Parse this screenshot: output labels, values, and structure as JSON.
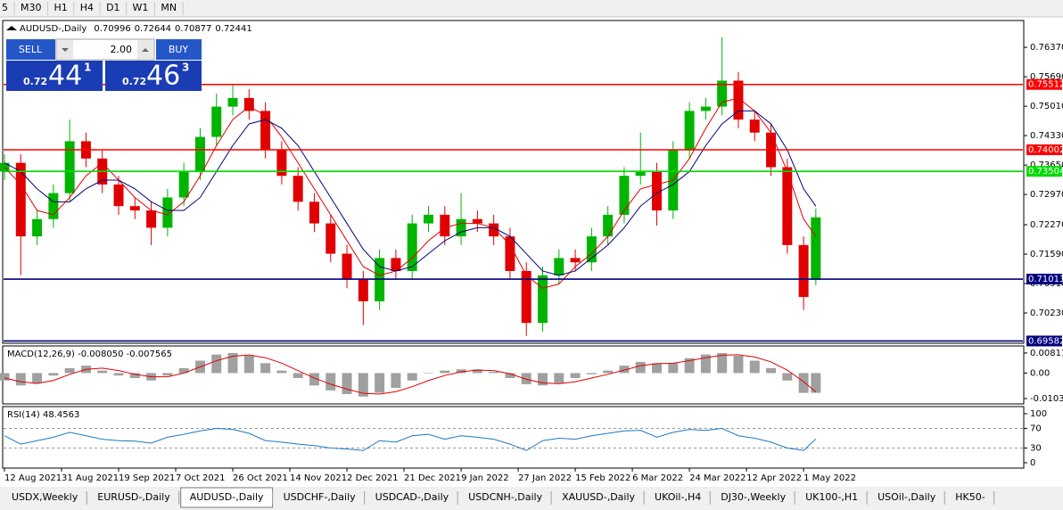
{
  "toolbar": {
    "items": [
      "5",
      "M30",
      "H1",
      "H4",
      "D1",
      "W1",
      "MN"
    ]
  },
  "trade_panel": {
    "sell_label": "SELL",
    "lot": "2.00",
    "buy_label": "BUY",
    "sell_price": {
      "prefix": "0.72",
      "main": "44",
      "small": "1"
    },
    "buy_price": {
      "prefix": "0.72",
      "main": "46",
      "small": "3"
    }
  },
  "tabs": {
    "items": [
      "USDX,Weekly",
      "EURUSD-,Daily",
      "AUDUSD-,Daily",
      "USDCHF-,Daily",
      "USDCAD-,Daily",
      "USDCNH-,Daily",
      "XAUUSD-,Daily",
      "UKOil-,H4",
      "DJ30-,Weekly",
      "UK100-,H1",
      "USOil-,Daily",
      "HK50-"
    ],
    "active": 2
  },
  "chart_data": {
    "type": "candlestick",
    "symbol": "AUDUSD-,Daily",
    "up_color": "#00b400",
    "down_color": "#e00000",
    "x": [
      0,
      4,
      8,
      12,
      16,
      20,
      24,
      28,
      32,
      36,
      40,
      44,
      48,
      52,
      56,
      60,
      64,
      68,
      72,
      76,
      80,
      84,
      88,
      92,
      96,
      100,
      104,
      108,
      112,
      116,
      120,
      124,
      128,
      132,
      136,
      140,
      144,
      148,
      152,
      156,
      160,
      164,
      168,
      172,
      176,
      180,
      184,
      188,
      192,
      196,
      199
    ],
    "open": [
      0.735,
      0.737,
      0.72,
      0.724,
      0.73,
      0.742,
      0.738,
      0.732,
      0.727,
      0.726,
      0.722,
      0.729,
      0.735,
      0.743,
      0.75,
      0.752,
      0.749,
      0.74,
      0.734,
      0.728,
      0.723,
      0.716,
      0.71,
      0.705,
      0.715,
      0.712,
      0.723,
      0.725,
      0.72,
      0.724,
      0.723,
      0.72,
      0.712,
      0.7,
      0.711,
      0.715,
      0.714,
      0.72,
      0.725,
      0.734,
      0.735,
      0.726,
      0.74,
      0.749,
      0.75,
      0.756,
      0.747,
      0.744,
      0.736,
      0.718,
      0.70996
    ],
    "high": [
      0.739,
      0.739,
      0.726,
      0.732,
      0.747,
      0.744,
      0.74,
      0.734,
      0.729,
      0.728,
      0.731,
      0.737,
      0.745,
      0.753,
      0.755,
      0.754,
      0.751,
      0.742,
      0.736,
      0.73,
      0.725,
      0.718,
      0.712,
      0.717,
      0.717,
      0.725,
      0.727,
      0.727,
      0.73,
      0.726,
      0.725,
      0.722,
      0.714,
      0.713,
      0.717,
      0.717,
      0.722,
      0.727,
      0.736,
      0.744,
      0.737,
      0.742,
      0.751,
      0.752,
      0.766,
      0.758,
      0.749,
      0.746,
      0.738,
      0.72,
      0.72644
    ],
    "low": [
      0.733,
      0.711,
      0.718,
      0.722,
      0.728,
      0.736,
      0.73,
      0.725,
      0.724,
      0.718,
      0.72,
      0.727,
      0.733,
      0.741,
      0.748,
      0.747,
      0.738,
      0.732,
      0.726,
      0.721,
      0.714,
      0.708,
      0.6995,
      0.703,
      0.71,
      0.71,
      0.721,
      0.718,
      0.718,
      0.721,
      0.718,
      0.71,
      0.697,
      0.698,
      0.709,
      0.712,
      0.712,
      0.718,
      0.723,
      0.732,
      0.7225,
      0.724,
      0.738,
      0.747,
      0.748,
      0.745,
      0.742,
      0.734,
      0.716,
      0.703,
      0.70877
    ],
    "close": [
      0.737,
      0.72,
      0.724,
      0.73,
      0.742,
      0.738,
      0.732,
      0.727,
      0.726,
      0.722,
      0.729,
      0.735,
      0.743,
      0.75,
      0.752,
      0.749,
      0.74,
      0.734,
      0.728,
      0.723,
      0.716,
      0.71,
      0.705,
      0.715,
      0.712,
      0.723,
      0.725,
      0.72,
      0.724,
      0.723,
      0.72,
      0.712,
      0.7,
      0.711,
      0.715,
      0.714,
      0.72,
      0.725,
      0.734,
      0.735,
      0.726,
      0.74,
      0.749,
      0.75,
      0.756,
      0.747,
      0.744,
      0.736,
      0.718,
      0.706,
      0.72441
    ],
    "moving_averages": [
      {
        "color": "#e00000",
        "values": [
          0.736,
          0.732,
          0.726,
          0.725,
          0.729,
          0.734,
          0.737,
          0.733,
          0.729,
          0.726,
          0.725,
          0.728,
          0.734,
          0.741,
          0.747,
          0.75,
          0.748,
          0.743,
          0.737,
          0.731,
          0.725,
          0.719,
          0.713,
          0.711,
          0.712,
          0.715,
          0.719,
          0.722,
          0.723,
          0.723,
          0.722,
          0.718,
          0.711,
          0.708,
          0.709,
          0.713,
          0.716,
          0.72,
          0.726,
          0.731,
          0.732,
          0.733,
          0.738,
          0.745,
          0.751,
          0.752,
          0.749,
          0.744,
          0.735,
          0.724,
          0.72
        ]
      },
      {
        "color": "#00007f",
        "values": [
          0.737,
          0.735,
          0.731,
          0.728,
          0.728,
          0.731,
          0.733,
          0.733,
          0.731,
          0.728,
          0.726,
          0.726,
          0.729,
          0.735,
          0.741,
          0.746,
          0.747,
          0.745,
          0.741,
          0.735,
          0.729,
          0.723,
          0.717,
          0.713,
          0.712,
          0.713,
          0.716,
          0.719,
          0.721,
          0.722,
          0.722,
          0.72,
          0.716,
          0.712,
          0.711,
          0.712,
          0.715,
          0.718,
          0.722,
          0.727,
          0.73,
          0.732,
          0.735,
          0.741,
          0.746,
          0.749,
          0.749,
          0.746,
          0.74,
          0.731,
          0.727
        ]
      }
    ],
    "levels": [
      {
        "value": 0.75512,
        "color": "#ff0000"
      },
      {
        "value": 0.74002,
        "color": "#ff0000"
      },
      {
        "value": 0.73504,
        "color": "#00dc00"
      },
      {
        "value": 0.71013,
        "color": "#00007f"
      },
      {
        "value": 0.69582,
        "color": "#00007f"
      }
    ],
    "xlim": [
      0,
      250
    ],
    "xticks": [
      {
        "value": 0,
        "label": "12 Aug 2021"
      },
      {
        "value": 14,
        "label": "31 Aug 2021"
      },
      {
        "value": 28,
        "label": "19 Sep 2021"
      },
      {
        "value": 42,
        "label": "7 Oct 2021"
      },
      {
        "value": 56,
        "label": "26 Oct 2021"
      },
      {
        "value": 70,
        "label": "14 Nov 2021"
      },
      {
        "value": 84,
        "label": "2 Dec 2021"
      },
      {
        "value": 98,
        "label": "21 Dec 2021"
      },
      {
        "value": 112,
        "label": "9 Jan 2022"
      },
      {
        "value": 126,
        "label": "27 Jan 2022"
      },
      {
        "value": 140,
        "label": "15 Feb 2022"
      },
      {
        "value": 154,
        "label": "6 Mar 2022"
      },
      {
        "value": 168,
        "label": "24 Mar 2022"
      },
      {
        "value": 182,
        "label": "12 Apr 2022"
      },
      {
        "value": 196,
        "label": "1 May 2022"
      }
    ],
    "ylim": [
      0.6955,
      0.7697
    ],
    "yticks": [
      {
        "value": 0.7637,
        "label": "0.76370"
      },
      {
        "value": 0.7569,
        "label": "0.75690"
      },
      {
        "value": 0.7501,
        "label": "0.75010"
      },
      {
        "value": 0.7433,
        "label": "0.74330"
      },
      {
        "value": 0.7365,
        "label": "0.73650"
      },
      {
        "value": 0.7297,
        "label": "0.72970"
      },
      {
        "value": 0.7227,
        "label": "0.72270"
      },
      {
        "value": 0.7159,
        "label": "0.71590"
      },
      {
        "value": 0.7091,
        "label": "0.70910"
      },
      {
        "value": 0.7023,
        "label": "0.70230"
      }
    ],
    "macd": {
      "title": "MACD(12,26,9) -0.008050 -0.007565",
      "histogram_color": "#a0a0a0",
      "signal_color": "#e00000",
      "histogram": [
        -0.003,
        -0.005,
        -0.004,
        -0.001,
        0.002,
        0.003,
        0.001,
        -0.001,
        -0.002,
        -0.003,
        -0.001,
        0.002,
        0.005,
        0.0075,
        0.0081,
        0.007,
        0.004,
        0.001,
        -0.002,
        -0.005,
        -0.007,
        -0.0085,
        -0.0095,
        -0.008,
        -0.006,
        -0.003,
        0.0,
        0.001,
        0.0015,
        0.0015,
        0.0005,
        -0.002,
        -0.0045,
        -0.005,
        -0.004,
        -0.002,
        -0.0005,
        0.001,
        0.003,
        0.0045,
        0.004,
        0.004,
        0.006,
        0.0075,
        0.0081,
        0.007,
        0.005,
        0.002,
        -0.003,
        -0.008,
        -0.008
      ],
      "signal": [
        -0.002,
        -0.0035,
        -0.0042,
        -0.003,
        -0.0005,
        0.0015,
        0.002,
        0.001,
        -0.0005,
        -0.0015,
        -0.0015,
        0.0,
        0.0025,
        0.005,
        0.0068,
        0.0073,
        0.0062,
        0.004,
        0.001,
        -0.002,
        -0.0045,
        -0.0065,
        -0.0082,
        -0.0085,
        -0.0075,
        -0.0055,
        -0.003,
        -0.001,
        0.0005,
        0.0012,
        0.001,
        -0.0003,
        -0.0025,
        -0.004,
        -0.0043,
        -0.0035,
        -0.002,
        -0.0005,
        0.0012,
        0.003,
        0.0038,
        0.004,
        0.005,
        0.0062,
        0.0072,
        0.0074,
        0.0065,
        0.0045,
        0.0012,
        -0.0035,
        -0.0076
      ],
      "ylim": [
        -0.0121,
        0.0106
      ],
      "yticks": [
        0.00811,
        {
          "value": 0,
          "label": "0.00"
        },
        -0.01031
      ]
    },
    "rsi": {
      "title": "RSI(14) 48.4563",
      "color": "#1e78c8",
      "values": [
        55,
        38,
        45,
        52,
        62,
        55,
        48,
        45,
        44,
        40,
        52,
        58,
        65,
        70,
        68,
        60,
        45,
        42,
        38,
        35,
        30,
        28,
        25,
        45,
        42,
        55,
        58,
        48,
        55,
        52,
        48,
        38,
        25,
        45,
        50,
        48,
        55,
        60,
        65,
        66,
        52,
        62,
        68,
        66,
        70,
        55,
        50,
        42,
        30,
        25,
        48.4563
      ],
      "ylim": [
        -10.9,
        114.5
      ],
      "yticks": [
        100,
        70,
        30,
        0
      ]
    }
  }
}
